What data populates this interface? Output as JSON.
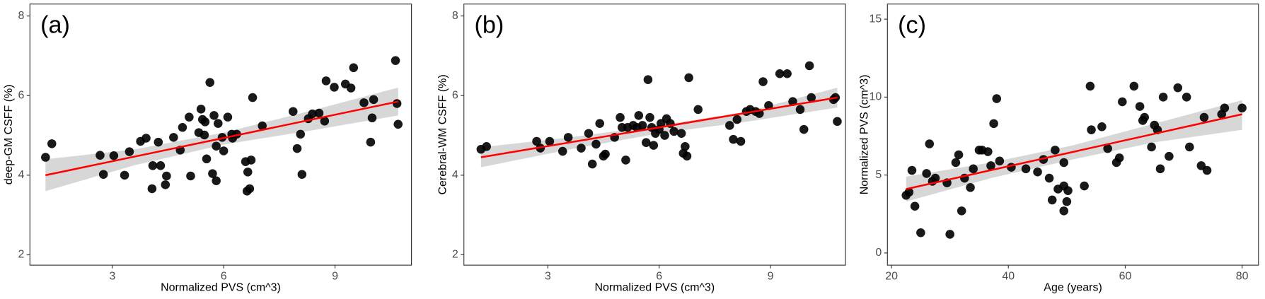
{
  "chart_data": [
    {
      "type": "scatter",
      "panel_label": "(a)",
      "x_label": "Normalized PVS (cm^3)",
      "y_label": "deep-GM CSFF (%)",
      "xlim": [
        0.78,
        11.06
      ],
      "ylim": [
        1.74,
        8.3
      ],
      "xticks": [
        3,
        6,
        9
      ],
      "yticks": [
        2,
        4,
        6,
        8
      ],
      "color": "#000000",
      "x": [
        1.2,
        1.37,
        2.67,
        2.76,
        3.04,
        3.33,
        3.46,
        3.76,
        3.91,
        4.07,
        4.09,
        4.24,
        4.3,
        4.43,
        4.46,
        4.65,
        4.83,
        4.89,
        5.07,
        5.11,
        5.33,
        5.39,
        5.43,
        5.48,
        5.5,
        5.54,
        5.63,
        5.7,
        5.74,
        5.8,
        5.8,
        5.85,
        5.96,
        6.0,
        6.11,
        6.22,
        6.24,
        6.35,
        6.59,
        6.63,
        6.65,
        6.7,
        6.74,
        6.78,
        7.04,
        7.87,
        7.98,
        8.07,
        8.11,
        8.28,
        8.39,
        8.57,
        8.72,
        8.76,
        8.98,
        9.28,
        9.43,
        9.5,
        9.78,
        9.96,
        10.0,
        10.04,
        10.63,
        10.67,
        10.7
      ],
      "values": [
        4.45,
        4.79,
        4.5,
        4.02,
        4.49,
        4.0,
        4.59,
        4.85,
        4.93,
        3.66,
        4.24,
        4.83,
        4.24,
        3.76,
        3.98,
        4.95,
        4.63,
        5.2,
        5.46,
        3.98,
        5.07,
        5.66,
        5.4,
        5.01,
        5.34,
        4.41,
        6.33,
        4.04,
        5.5,
        4.73,
        3.86,
        5.3,
        4.95,
        4.61,
        5.46,
        5.03,
        4.93,
        5.03,
        4.34,
        3.6,
        4.08,
        3.66,
        4.38,
        5.95,
        5.24,
        5.6,
        4.67,
        5.03,
        4.02,
        5.42,
        5.54,
        5.56,
        5.36,
        6.37,
        6.21,
        6.29,
        6.19,
        6.7,
        5.82,
        4.83,
        5.44,
        5.9,
        6.88,
        5.8,
        5.28
      ],
      "fit": {
        "x": [
          1.2,
          10.7
        ],
        "values": [
          4.0,
          5.85
        ],
        "color": "#ff0000"
      },
      "band": {
        "x": [
          1.2,
          3.6,
          6.0,
          8.4,
          10.7
        ],
        "lower": [
          3.6,
          4.25,
          4.77,
          5.13,
          5.5
        ],
        "upper": [
          4.4,
          4.65,
          5.07,
          5.63,
          6.2
        ],
        "color": "#d3d3d3"
      }
    },
    {
      "type": "scatter",
      "panel_label": "(b)",
      "x_label": "Normalized PVS (cm^3)",
      "y_label": "Cerebral-WM CSFF (%)",
      "xlim": [
        0.74,
        11.02
      ],
      "ylim": [
        1.74,
        8.3
      ],
      "xticks": [
        3,
        6,
        9
      ],
      "yticks": [
        2,
        4,
        6,
        8
      ],
      "color": "#000000",
      "x": [
        1.2,
        1.35,
        2.7,
        2.8,
        3.05,
        3.4,
        3.55,
        3.9,
        4.1,
        4.2,
        4.3,
        4.4,
        4.5,
        4.55,
        4.8,
        4.95,
        5.0,
        5.1,
        5.15,
        5.3,
        5.4,
        5.45,
        5.55,
        5.65,
        5.7,
        5.75,
        5.8,
        5.85,
        5.9,
        6.0,
        6.05,
        6.15,
        6.2,
        6.3,
        6.4,
        6.6,
        6.65,
        6.7,
        6.75,
        6.8,
        7.05,
        7.9,
        8.0,
        8.1,
        8.2,
        8.35,
        8.45,
        8.6,
        8.7,
        8.8,
        8.95,
        9.25,
        9.45,
        9.6,
        9.8,
        9.9,
        10.05,
        10.1,
        10.7,
        10.75,
        10.8
      ],
      "values": [
        4.65,
        4.72,
        4.85,
        4.68,
        4.85,
        4.6,
        4.95,
        4.68,
        5.05,
        4.28,
        4.78,
        5.3,
        4.48,
        4.53,
        4.95,
        5.45,
        5.2,
        4.38,
        5.2,
        5.25,
        5.2,
        5.5,
        5.25,
        4.82,
        6.4,
        5.45,
        5.2,
        4.75,
        5.05,
        5.15,
        5.3,
        5.0,
        5.42,
        5.3,
        5.1,
        5.05,
        4.55,
        4.72,
        4.48,
        6.45,
        5.65,
        5.25,
        4.9,
        5.4,
        4.85,
        5.6,
        5.65,
        5.6,
        5.55,
        6.35,
        5.75,
        6.55,
        6.55,
        5.85,
        5.65,
        5.15,
        6.75,
        5.95,
        5.9,
        5.95,
        5.35
      ],
      "fit": {
        "x": [
          1.2,
          10.8
        ],
        "values": [
          4.45,
          5.95
        ],
        "color": "#ff0000"
      },
      "band": {
        "x": [
          1.2,
          3.6,
          6.0,
          8.4,
          10.8
        ],
        "lower": [
          4.2,
          4.65,
          5.05,
          5.35,
          5.7
        ],
        "upper": [
          4.7,
          4.95,
          5.25,
          5.6,
          6.2
        ],
        "color": "#d3d3d3"
      }
    },
    {
      "type": "scatter",
      "panel_label": "(c)",
      "x_label": "Age (years)",
      "y_label": "Normalized PVS (cm^3)",
      "xlim": [
        19.3,
        82.8
      ],
      "ylim": [
        -0.78,
        15.97
      ],
      "xticks": [
        20,
        40,
        60,
        80
      ],
      "yticks": [
        0,
        5,
        10,
        15
      ],
      "color": "#000000",
      "x": [
        22.5,
        23,
        23.5,
        24,
        25,
        26,
        26.5,
        27,
        27.5,
        29.5,
        30,
        31,
        31.5,
        32,
        32.5,
        33.5,
        34,
        35,
        35.5,
        36.5,
        37,
        37.5,
        38,
        38.5,
        40.5,
        43,
        45,
        46,
        47,
        47.5,
        48,
        48.5,
        49.5,
        49.5,
        49.5,
        50,
        50.2,
        53,
        54,
        54.2,
        56,
        57,
        58.5,
        59,
        59.5,
        61.5,
        62.5,
        63,
        63.3,
        64.5,
        65,
        65.5,
        66,
        66.5,
        67.5,
        69,
        70.5,
        71,
        73,
        73.5,
        74,
        76.5,
        77,
        80
      ],
      "values": [
        3.7,
        3.9,
        5.3,
        3.0,
        1.3,
        5.1,
        7.0,
        4.6,
        4.8,
        4.5,
        1.2,
        5.8,
        6.3,
        2.7,
        4.8,
        4.2,
        5.4,
        6.6,
        6.6,
        6.5,
        5.6,
        8.3,
        9.9,
        5.9,
        5.5,
        5.4,
        5.2,
        6.0,
        4.8,
        3.4,
        6.6,
        4.1,
        4.3,
        5.8,
        2.7,
        3.3,
        4.0,
        4.3,
        10.7,
        7.9,
        8.1,
        6.7,
        5.8,
        6.1,
        9.7,
        10.7,
        9.4,
        8.5,
        8.7,
        6.8,
        8.2,
        7.9,
        5.4,
        10.0,
        6.2,
        10.6,
        10.0,
        6.8,
        5.6,
        8.7,
        5.3,
        8.9,
        9.3,
        9.3
      ],
      "fit": {
        "x": [
          22.5,
          80
        ],
        "values": [
          4.1,
          8.9
        ],
        "color": "#ff0000"
      },
      "band": {
        "x": [
          22.5,
          37,
          51,
          65,
          80
        ],
        "lower": [
          3.3,
          4.8,
          6.0,
          7.1,
          7.9
        ],
        "upper": [
          4.9,
          5.8,
          6.9,
          8.3,
          9.8
        ],
        "color": "#d3d3d3"
      }
    }
  ]
}
